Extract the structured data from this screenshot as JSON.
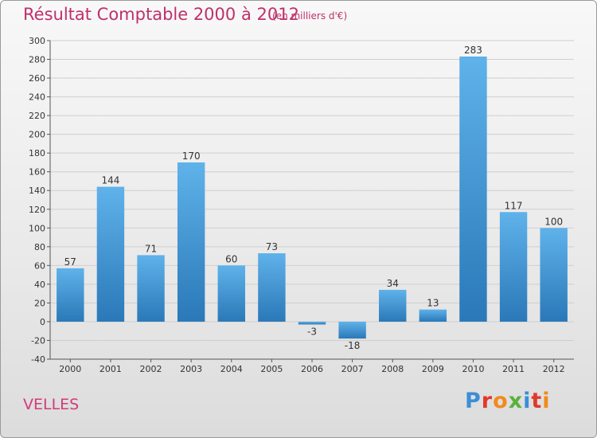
{
  "chart_data": {
    "type": "bar",
    "title": "Résultat Comptable 2000 à 2012",
    "subtitle": "(en milliers d'€)",
    "categories": [
      "2000",
      "2001",
      "2002",
      "2003",
      "2004",
      "2005",
      "2006",
      "2007",
      "2008",
      "2009",
      "2010",
      "2011",
      "2012"
    ],
    "values": [
      57,
      144,
      71,
      170,
      60,
      73,
      -3,
      -18,
      34,
      13,
      283,
      117,
      100
    ],
    "ylim": [
      -40,
      300
    ],
    "ytick_step": 20,
    "grid": true,
    "xlabel": "",
    "ylabel": "",
    "bar_color": "#4a9fdc",
    "bar_color_dark": "#2a78b8"
  },
  "footer": {
    "commune": "VELLES",
    "brand": "Proxiti",
    "brand_colors": [
      "#3a8fd6",
      "#e0392c",
      "#f28a1a",
      "#5ab03c",
      "#3a8fd6",
      "#e0392c",
      "#f28a1a"
    ]
  },
  "colors": {
    "title": "#c0306a"
  }
}
